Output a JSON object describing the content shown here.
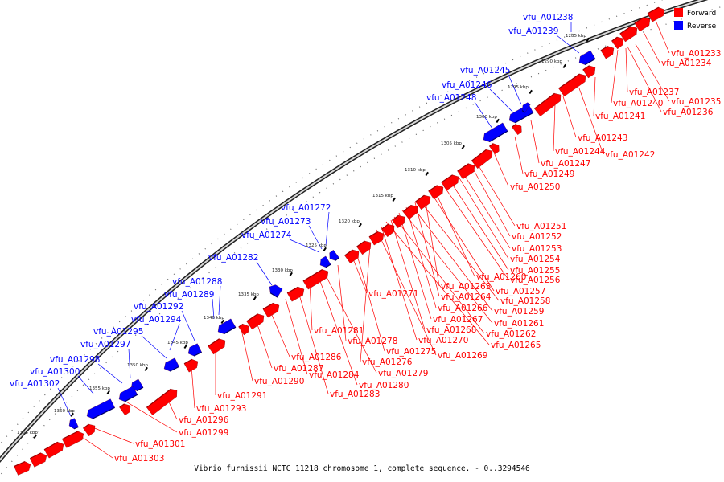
{
  "caption": "Vibrio furnissii NCTC 11218 chromosome 1, complete sequence. - 0..3294546",
  "legend": [
    {
      "label": "Forward",
      "color": "#ff0000"
    },
    {
      "label": "Reverse",
      "color": "#0000ff"
    }
  ],
  "colors": {
    "forward": "#ff0000",
    "reverse": "#0000ff",
    "backbone": "#888888"
  },
  "ticks": [
    "1285 kbp",
    "1290 kbp",
    "1295 kbp",
    "1300 kbp",
    "1305 kbp",
    "1310 kbp",
    "1315 kbp",
    "1320 kbp",
    "1325 kbp",
    "1330 kbp",
    "1335 kbp",
    "1340 kbp",
    "1345 kbp",
    "1350 kbp",
    "1355 kbp",
    "1360 kbp",
    "1365 kbp"
  ],
  "reverse_labels": [
    "vfu_A01238",
    "vfu_A01239",
    "vfu_A01245",
    "vfu_A01246",
    "vfu_A01248",
    "vfu_A01272",
    "vfu_A01273",
    "vfu_A01274",
    "vfu_A01282",
    "vfu_A01288",
    "vfu_A01289",
    "vfu_A01292",
    "vfu_A01294",
    "vfu_A01295",
    "vfu_A01297",
    "vfu_A01298",
    "vfu_A01300",
    "vfu_A01302"
  ],
  "forward_labels": [
    "vfu_A01233",
    "vfu_A01234",
    "vfu_A01237",
    "vfu_A01235",
    "vfu_A01240",
    "vfu_A01236",
    "vfu_A01241",
    "vfu_A01243",
    "vfu_A01242",
    "vfu_A01244",
    "vfu_A01247",
    "vfu_A01249",
    "vfu_A01250",
    "vfu_A01251",
    "vfu_A01252",
    "vfu_A01253",
    "vfu_A01254",
    "vfu_A01255",
    "vfu_A01256",
    "vfu_A01260",
    "vfu_A01257",
    "vfu_A01263",
    "vfu_A01258",
    "vfu_A01264",
    "vfu_A01259",
    "vfu_A01266",
    "vfu_A01261",
    "vfu_A01267",
    "vfu_A01262",
    "vfu_A01268",
    "vfu_A01265",
    "vfu_A01270",
    "vfu_A01269",
    "vfu_A01271",
    "vfu_A01275",
    "vfu_A01278",
    "vfu_A01276",
    "vfu_A01279",
    "vfu_A01280",
    "vfu_A01281",
    "vfu_A01283",
    "vfu_A01284",
    "vfu_A01286",
    "vfu_A01287",
    "vfu_A01290",
    "vfu_A01291",
    "vfu_A01293",
    "vfu_A01296",
    "vfu_A01299",
    "vfu_A01301",
    "vfu_A01303"
  ]
}
